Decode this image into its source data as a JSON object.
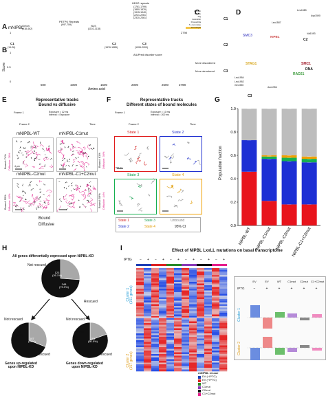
{
  "panels": {
    "A": "A",
    "B": "B",
    "C": "C",
    "D": "D",
    "E": "E",
    "F": "F",
    "G": "G",
    "H": "H",
    "I": "I"
  },
  "A": {
    "protein": "mNIPBL",
    "start": "1",
    "end": "2798",
    "regions": [
      {
        "name": "Pxxx\nFlag",
        "range": ""
      },
      {
        "name": "Gr/loh",
        "range": "(418-462)"
      },
      {
        "name": "PETPK Repeats",
        "range": "(997-759)"
      },
      {
        "name": "NLS",
        "range": "(1102-1118)"
      },
      {
        "name": "HEAT repeats",
        "range": "(1761-1799)\n(1850-1876)\n(1915-1940)\n(2221-2261)\n(2320-2361)"
      },
      {
        "name": "C1",
        "range": "(19-26)"
      },
      {
        "name": "C2",
        "range": "(1576-1585)"
      },
      {
        "name": "C3",
        "range": "(1995-2000)"
      }
    ]
  },
  "B": {
    "ylabel": "Score",
    "legend": "AIUPred disorder score",
    "more_disordered": "More disordered",
    "more_structured": "More structured",
    "xlabel": "Amino acid",
    "yticks": [
      "1",
      "0.5",
      "0"
    ],
    "xticks": [
      "500",
      "1000",
      "1500",
      "2000",
      "2500",
      "2798"
    ]
  },
  "C": {
    "species": [
      "Human",
      "Mouse",
      "Pig",
      "Zebrafish",
      "Drosophila",
      "S. cerevisiae",
      "Scc2/Nipbl"
    ],
    "groups": [
      "C1",
      "C2",
      "C3"
    ]
  },
  "D": {
    "labels": [
      "Leu1583",
      "Asp1590",
      "Leu1587",
      "Val1593",
      "SMC3",
      "NIPBL",
      "C2",
      "STAG1",
      "SMC1",
      "DNA",
      "RAD21",
      "Leu1954",
      "Leu1952",
      "Gln1950",
      "Asn1954",
      "C3"
    ]
  },
  "E": {
    "title": "Representative tracks\nBound vs diffusive",
    "frame1": "Frame 1",
    "frame2": "Frame 2",
    "time": "Time",
    "exposure": "Exposure = 12 ms\nInterval = Exposure",
    "cells": [
      {
        "name": "mNIPBL-WT",
        "bound": "Bound: 74%",
        "diffusive": "Diffusive: 26%"
      },
      {
        "name": "mNIPBL-C1mut",
        "bound": "Bound: 61%",
        "diffusive": "Diffusive: 39%"
      },
      {
        "name": "mNIPBL-C2mut",
        "bound": "Bound: 55%",
        "diffusive": "Diffusive: 45%"
      },
      {
        "name": "mNIPBL-C1+C2mut",
        "bound": "Bound: 56%",
        "diffusive": "Diffusive: 44%"
      }
    ],
    "scalebar": "4 μm",
    "legend": [
      "Bound",
      "Diffusive"
    ]
  },
  "F": {
    "title": "Representative tracks\nDifferent states of bound molecules",
    "frame1": "Frame 1",
    "frame2": "Frame 2",
    "time": "Time",
    "exposure": "Exposure = 10 ms\nInterval = 200 ms",
    "states": [
      "State 1",
      "State 2",
      "State 3",
      "State 4"
    ],
    "scalebar": "500 nm",
    "legend": [
      "State 1",
      "State 3",
      "Unbound",
      "State 2",
      "State 4",
      "95% CI"
    ]
  },
  "G": {
    "ylabel": "Population fraction",
    "yticks": [
      "0.0",
      "0.2",
      "0.4",
      "0.6",
      "0.8",
      "1.0"
    ],
    "categories": [
      "NIPBL-WT",
      "NIPBL-C1mut",
      "NIPBL-C2mut",
      "NIPBL-C1+C2mut"
    ]
  },
  "H": {
    "title_all": "All genes differentially expressed upon NIPBL-KD",
    "main": {
      "not_rescued": "123\n(26.1%)",
      "rescued": "348\n(73.9%)"
    },
    "up": {
      "not_rescued": "84\n(31%)",
      "rescued": "187\n(69%)",
      "caption": "Genes up-regulated\nupon NIPBL-KD"
    },
    "down": {
      "not_rescued": "39\n(19.5%)",
      "rescued": "161\n(80.5%)",
      "caption": "Genes down-regulated\nupon NIPBL-KD"
    },
    "label_not": "Not rescued",
    "label_res": "Rescued"
  },
  "I": {
    "title": "Effect of NIPBL LxxLL mutations on basal transcriptome",
    "iptg": "IPTG",
    "iptg_states": [
      "−",
      "+",
      "−",
      "+",
      "−",
      "+",
      "−",
      "+",
      "−",
      "+",
      "−",
      "+"
    ],
    "cluster1": "Cluster 1\n(151 genes)",
    "cluster2": "Cluster 2\n(157 genes)",
    "legend_title": "mNIPBL rescue",
    "legend_items": [
      "EV (−IPTG)",
      "EV (+IPTG)",
      "WT",
      "C1mut",
      "C2mut",
      "C1+C2mut"
    ],
    "legend_colors": [
      "#1f3fb4",
      "#d22",
      "#2a8a2a",
      "#8a3ab8",
      "#111",
      "#e61e8c"
    ],
    "inset_headers": [
      "EV",
      "EV",
      "WT",
      "C1mut",
      "C2mut",
      "C1+C2mut"
    ],
    "inset_iptg": [
      "−",
      "+",
      "+",
      "+",
      "+",
      "+"
    ],
    "inset_c1": "Cluster 1",
    "inset_c2": "Cluster 2"
  },
  "chart_data": [
    {
      "type": "bar",
      "title": "",
      "ylabel": "Population fraction",
      "ylim": [
        0,
        1
      ],
      "categories": [
        "NIPBL-WT",
        "NIPBL-C1mut",
        "NIPBL-C2mut",
        "NIPBL-C1+C2mut"
      ],
      "series": [
        {
          "name": "State 1",
          "color": "#e8141c",
          "values": [
            0.46,
            0.21,
            0.18,
            0.18
          ]
        },
        {
          "name": "State 2",
          "color": "#1d2fd4",
          "values": [
            0.27,
            0.36,
            0.37,
            0.36
          ]
        },
        {
          "name": "State 3",
          "color": "#16b050",
          "values": [
            0.0,
            0.02,
            0.03,
            0.03
          ]
        },
        {
          "name": "State 4",
          "color": "#f0a000",
          "values": [
            0.0,
            0.01,
            0.02,
            0.02
          ]
        },
        {
          "name": "Unbound",
          "color": "#bdbdbd",
          "values": [
            0.27,
            0.4,
            0.4,
            0.41
          ]
        }
      ]
    },
    {
      "type": "pie",
      "title": "All genes differentially expressed upon NIPBL-KD",
      "categories": [
        "Not rescued",
        "Rescued"
      ],
      "values": [
        123,
        348
      ]
    },
    {
      "type": "pie",
      "title": "Genes up-regulated upon NIPBL-KD",
      "categories": [
        "Not rescued",
        "Rescued"
      ],
      "values": [
        84,
        187
      ]
    },
    {
      "type": "pie",
      "title": "Genes down-regulated upon NIPBL-KD",
      "categories": [
        "Not rescued",
        "Rescued"
      ],
      "values": [
        39,
        161
      ]
    }
  ]
}
